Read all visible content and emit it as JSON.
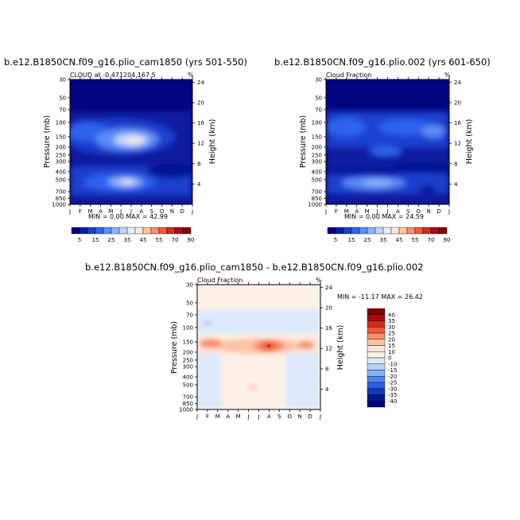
{
  "figure_title_left": "b.e12.B1850CN.f09_g16.plio_cam1850 (yrs 501-550)",
  "figure_title_right": "b.e12.B1850CN.f09_g16.plio.002 (yrs 601-650)",
  "figure_title_bottom": "b.e12.B1850CN.f09_g16.plio_cam1850 - b.e12.B1850CN.f09_g16.plio.002",
  "chart_data": [
    {
      "type": "heatmap",
      "subtitle_left": "CLOUD at -0.471204,167.5",
      "units": "%",
      "ylabel": "Pressure (mb)",
      "y2label": "Height (km)",
      "x_ticks": [
        "J",
        "F",
        "M",
        "A",
        "M",
        "J",
        "J",
        "A",
        "S",
        "O",
        "N",
        "D",
        "J"
      ],
      "y_ticks": [
        "30",
        "50",
        "70",
        "100",
        "150",
        "200",
        "250",
        "300",
        "400",
        "500",
        "700",
        "850",
        "1000"
      ],
      "y2_ticks": [
        "24",
        "20",
        "16",
        "12",
        "8",
        "4"
      ],
      "stats": "MIN = 0.00 MAX = 42.99",
      "colorbar": {
        "levels": [
          "5",
          "15",
          "25",
          "35",
          "45",
          "55",
          "70",
          "90"
        ],
        "colors": [
          "#00007f",
          "#0a1fa0",
          "#1a3fcf",
          "#2f63ee",
          "#5a8cf5",
          "#8fb5fa",
          "#c3d8fc",
          "#e8effd",
          "#fde9de",
          "#fbc3a6",
          "#f6906c",
          "#ee5a3a",
          "#d52a1c",
          "#a80d0d",
          "#7f0000"
        ]
      },
      "values_by_height": {
        "near_surface": 5,
        "700mb": 10,
        "500mb": 35,
        "400mb": 10,
        "300mb": 12,
        "150mb": 40,
        "100mb": 20,
        "30mb": 3
      },
      "ylim_mb": [
        1000,
        30
      ]
    },
    {
      "type": "heatmap",
      "subtitle_left": "Cloud Fraction",
      "units": "%",
      "ylabel": "Pressure (mb)",
      "y2label": "Height (km)",
      "x_ticks": [
        "J",
        "F",
        "M",
        "A",
        "M",
        "J",
        "J",
        "A",
        "S",
        "O",
        "N",
        "D",
        "J"
      ],
      "y_ticks": [
        "30",
        "50",
        "70",
        "100",
        "150",
        "200",
        "250",
        "300",
        "400",
        "500",
        "700",
        "850",
        "1000"
      ],
      "y2_ticks": [
        "24",
        "20",
        "16",
        "12",
        "8",
        "4"
      ],
      "stats": "MIN = 0.00 MAX = 24.59",
      "colorbar": {
        "levels": [
          "5",
          "15",
          "25",
          "35",
          "45",
          "55",
          "70",
          "90"
        ],
        "colors": [
          "#00007f",
          "#0a1fa0",
          "#1a3fcf",
          "#2f63ee",
          "#5a8cf5",
          "#8fb5fa",
          "#c3d8fc",
          "#e8effd",
          "#fde9de",
          "#fbc3a6",
          "#f6906c",
          "#ee5a3a",
          "#d52a1c",
          "#a80d0d",
          "#7f0000"
        ]
      },
      "values_by_height": {
        "near_surface": 5,
        "700mb": 10,
        "500mb": 20,
        "400mb": 8,
        "300mb": 10,
        "150mb": 22,
        "100mb": 18,
        "30mb": 3
      },
      "ylim_mb": [
        1000,
        30
      ]
    },
    {
      "type": "heatmap",
      "subtitle_left": "Cloud Fraction",
      "units": "%",
      "ylabel": "Pressure (mb)",
      "y2label": "Height (km)",
      "x_ticks": [
        "J",
        "F",
        "M",
        "A",
        "M",
        "J",
        "J",
        "A",
        "S",
        "O",
        "N",
        "D",
        "J"
      ],
      "y_ticks": [
        "30",
        "50",
        "70",
        "100",
        "150",
        "200",
        "250",
        "300",
        "400",
        "500",
        "700",
        "850",
        "1000"
      ],
      "y2_ticks": [
        "24",
        "20",
        "16",
        "12",
        "8",
        "4"
      ],
      "stats": "MIN = -11.17 MAX = 26.42",
      "colorbar": {
        "levels": [
          "40",
          "35",
          "30",
          "25",
          "20",
          "15",
          "10",
          "0",
          "-10",
          "-15",
          "-20",
          "-25",
          "-30",
          "-35",
          "-40"
        ],
        "colors": [
          "#7f0000",
          "#a80d0d",
          "#d52a1c",
          "#ee5a3a",
          "#f6906c",
          "#fbc3a6",
          "#fde4d4",
          "#fdf0e6",
          "#dbe9fb",
          "#b6d2fa",
          "#86b0f6",
          "#5286ef",
          "#2c5fe0",
          "#1238b7",
          "#05168f",
          "#00007f"
        ]
      },
      "values_by_height": {
        "near_surface": 2,
        "700mb": 5,
        "500mb": 4,
        "300mb": 3,
        "150mb": 20,
        "100mb": -5,
        "30mb": 2
      },
      "ylim_mb": [
        1000,
        30
      ]
    }
  ]
}
